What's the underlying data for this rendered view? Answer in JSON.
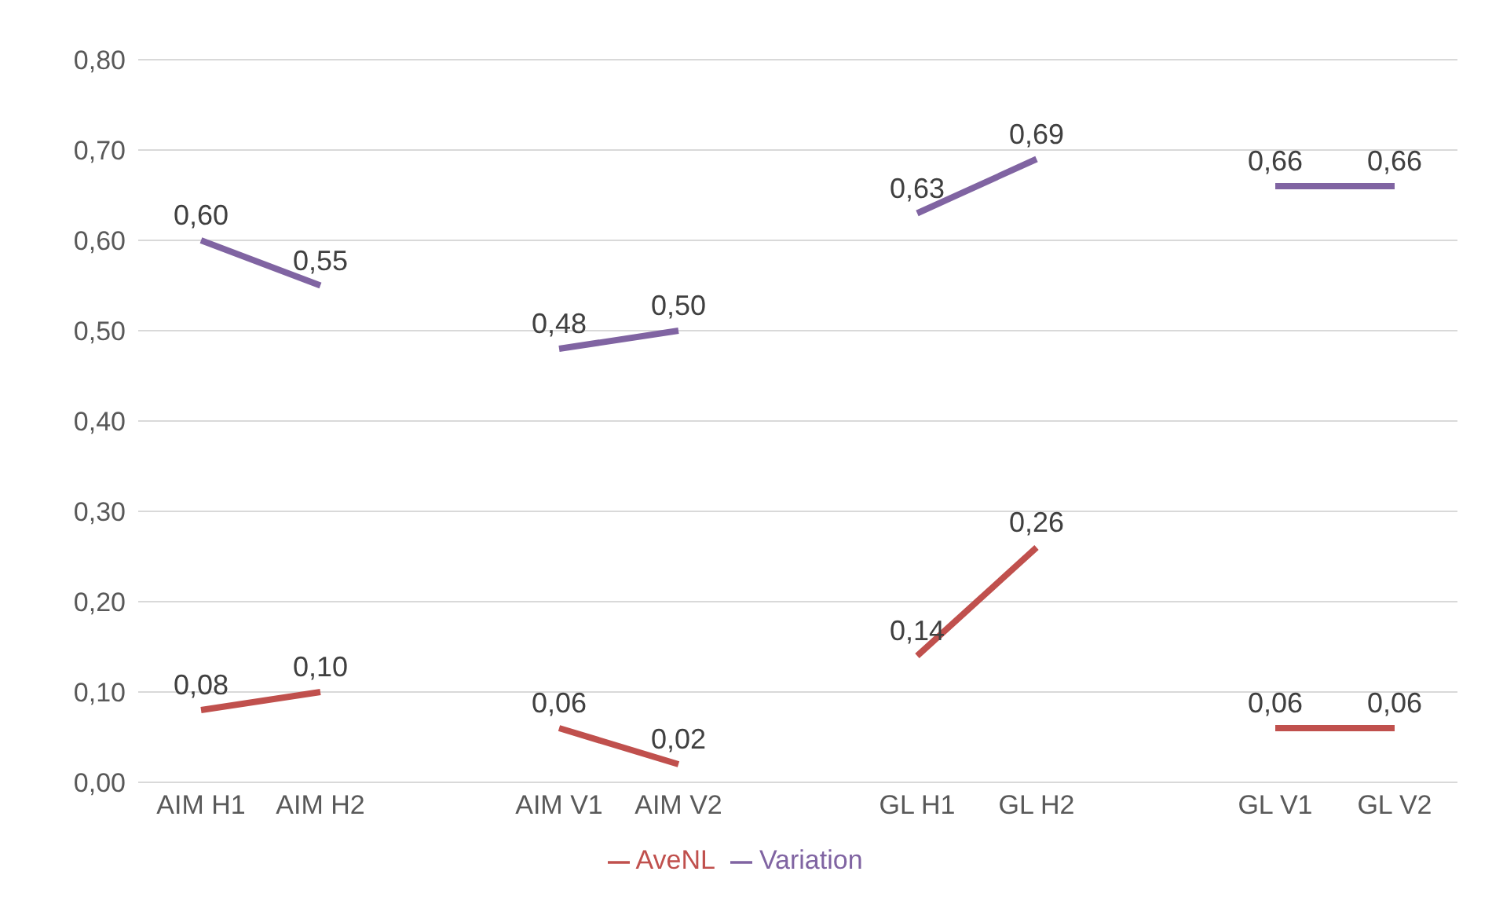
{
  "chart_data": {
    "type": "line",
    "categories": [
      "AIM H1",
      "AIM H2",
      null,
      "AIM V1",
      "AIM V2",
      null,
      "GL H1",
      "GL H2",
      null,
      "GL V1",
      "GL V2"
    ],
    "series": [
      {
        "name": "AveNL",
        "color": "#c0504d",
        "values": [
          0.08,
          0.1,
          null,
          0.06,
          0.02,
          null,
          0.14,
          0.26,
          null,
          0.06,
          0.06
        ],
        "value_labels": [
          "0,08",
          "0,10",
          null,
          "0,06",
          "0,02",
          null,
          "0,14",
          "0,26",
          null,
          "0,06",
          "0,06"
        ]
      },
      {
        "name": "Variation",
        "color": "#8064a2",
        "values": [
          0.6,
          0.55,
          null,
          0.48,
          0.5,
          null,
          0.63,
          0.69,
          null,
          0.66,
          0.66
        ],
        "value_labels": [
          "0,60",
          "0,55",
          null,
          "0,48",
          "0,50",
          null,
          "0,63",
          "0,69",
          null,
          "0,66",
          "0,66"
        ]
      }
    ],
    "ylim": [
      0,
      0.8
    ],
    "yticks": [
      {
        "value": 0,
        "label": "0,00"
      },
      {
        "value": 0.1,
        "label": "0,10"
      },
      {
        "value": 0.2,
        "label": "0,20"
      },
      {
        "value": 0.3,
        "label": "0,30"
      },
      {
        "value": 0.4,
        "label": "0,40"
      },
      {
        "value": 0.5,
        "label": "0,50"
      },
      {
        "value": 0.6,
        "label": "0,60"
      },
      {
        "value": 0.7,
        "label": "0,70"
      },
      {
        "value": 0.8,
        "label": "0,80"
      }
    ],
    "grid": "y",
    "legend": "bottom",
    "marker": "none",
    "line_style": "solid"
  }
}
